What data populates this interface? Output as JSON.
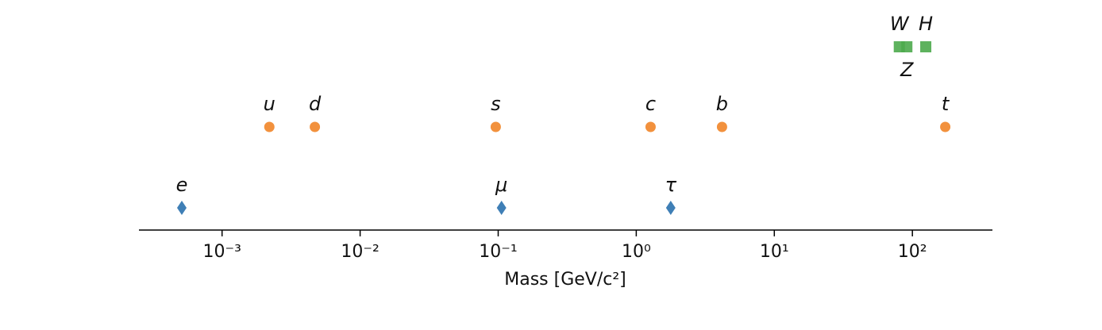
{
  "chart_data": {
    "type": "scatter",
    "xlabel": "Mass [GeV/c²]",
    "xscale": "log",
    "xlim": [
      0.00025,
      380
    ],
    "xticks": [
      {
        "value": 0.001,
        "label": "10⁻³"
      },
      {
        "value": 0.01,
        "label": "10⁻²"
      },
      {
        "value": 0.1,
        "label": "10⁻¹"
      },
      {
        "value": 1,
        "label": "10⁰"
      },
      {
        "value": 10,
        "label": "10¹"
      },
      {
        "value": 100,
        "label": "10²"
      }
    ],
    "series": [
      {
        "color": "#3f7fb6",
        "marker": "diamond",
        "labels": [
          "e",
          "μ",
          "τ"
        ],
        "x": [
          0.000511,
          0.1057,
          1.777
        ]
      },
      {
        "color": "#f2913d",
        "marker": "circle",
        "labels": [
          "u",
          "d",
          "s",
          "c",
          "b",
          "t"
        ],
        "x": [
          0.0022,
          0.0047,
          0.096,
          1.27,
          4.18,
          173
        ]
      },
      {
        "color": "#4caa4c",
        "marker": "square",
        "labels": [
          "W",
          "Z",
          "H"
        ],
        "x": [
          80.4,
          91.2,
          125
        ],
        "label_side": [
          "above",
          "below",
          "above"
        ]
      }
    ]
  }
}
